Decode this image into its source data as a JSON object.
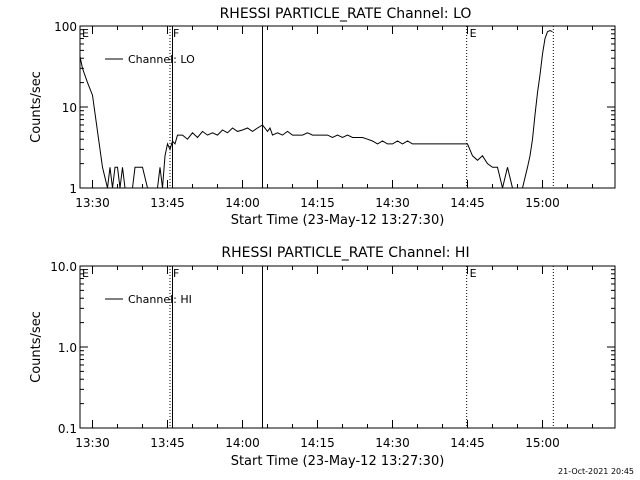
{
  "page": {
    "footer_timestamp": "21-Oct-2021 20:45"
  },
  "colors": {
    "background": "#ffffff",
    "ink": "#000000"
  },
  "chart_data": [
    {
      "type": "line",
      "title": "RHESSI PARTICLE_RATE Channel: LO",
      "xlabel": "Start Time (23-May-12 13:27:30)",
      "ylabel": "Counts/sec",
      "y_scale": "log",
      "ylim": [
        1,
        100
      ],
      "y_tick_values": [
        1,
        10,
        100
      ],
      "y_tick_labels": [
        "1",
        "10",
        "100"
      ],
      "x_tick_labels": [
        "13:30",
        "13:45",
        "14:00",
        "14:15",
        "14:30",
        "14:45",
        "15:00"
      ],
      "xlim": [
        "13:27:30",
        "15:14:30"
      ],
      "grid": false,
      "legend": {
        "placement": "top-left",
        "entries": [
          "Channel: LO"
        ]
      },
      "markers": [
        {
          "time": "13:45:30",
          "style": "dotted",
          "label": "F"
        },
        {
          "time": "13:46:00",
          "style": "solid",
          "label": ""
        },
        {
          "time": "14:04:00",
          "style": "solid",
          "label": ""
        },
        {
          "time": "14:44:50",
          "style": "dotted",
          "label": "E"
        },
        {
          "time": "15:02:10",
          "style": "dotted",
          "label": ""
        }
      ],
      "corner_labels": [
        {
          "time": "13:27:30",
          "label": "E"
        }
      ],
      "series": [
        {
          "name": "Channel: LO",
          "x": [
            "13:27:30",
            "13:28:00",
            "13:29:00",
            "13:30:00",
            "13:31:00",
            "13:32:00",
            "13:33:00",
            "13:33:30",
            "13:34:00",
            "13:34:30",
            "13:35:00",
            "13:35:30",
            "13:36:00",
            "13:36:30",
            "13:37:00",
            "13:38:00",
            "13:38:30",
            "13:39:00",
            "13:40:00",
            "13:41:00",
            "13:42:00",
            "13:43:00",
            "13:43:30",
            "13:44:00",
            "13:44:30",
            "13:45:00",
            "13:45:30",
            "13:46:00",
            "13:46:30",
            "13:47:00",
            "13:48:00",
            "13:49:00",
            "13:50:00",
            "13:51:00",
            "13:52:00",
            "13:53:00",
            "13:54:00",
            "13:55:00",
            "13:56:00",
            "13:57:00",
            "13:58:00",
            "13:59:00",
            "14:00:00",
            "14:01:00",
            "14:02:00",
            "14:03:00",
            "14:04:00",
            "14:05:00",
            "14:05:30",
            "14:06:00",
            "14:07:00",
            "14:08:00",
            "14:09:00",
            "14:10:00",
            "14:11:00",
            "14:12:00",
            "14:13:00",
            "14:14:00",
            "14:15:00",
            "14:16:00",
            "14:17:00",
            "14:18:00",
            "14:19:00",
            "14:20:00",
            "14:21:00",
            "14:22:00",
            "14:23:00",
            "14:24:00",
            "14:25:00",
            "14:26:00",
            "14:27:00",
            "14:28:00",
            "14:29:00",
            "14:30:00",
            "14:31:00",
            "14:32:00",
            "14:33:00",
            "14:34:00",
            "14:35:00",
            "14:36:00",
            "14:37:00",
            "14:38:00",
            "14:39:00",
            "14:40:00",
            "14:41:00",
            "14:42:00",
            "14:43:00",
            "14:44:00",
            "14:45:00",
            "14:46:00",
            "14:47:00",
            "14:48:00",
            "14:49:00",
            "14:50:00",
            "14:51:00",
            "14:52:00",
            "14:53:00",
            "14:54:00",
            "14:55:00",
            "14:56:00",
            "14:57:00",
            "14:57:30",
            "14:58:00",
            "14:58:30",
            "14:59:00",
            "14:59:30",
            "15:00:00",
            "15:00:30",
            "15:01:00",
            "15:01:30",
            "15:02:00"
          ],
          "y": [
            42,
            30,
            20,
            14,
            5,
            1.8,
            1.0,
            1.8,
            1.0,
            1.8,
            1.8,
            1.0,
            1.8,
            1.0,
            1.0,
            1.0,
            1.8,
            1.8,
            1.8,
            1.0,
            1.0,
            1.0,
            1.8,
            1.0,
            2.5,
            3.5,
            3.0,
            3.8,
            3.5,
            4.5,
            4.5,
            4.0,
            4.8,
            4.2,
            5.0,
            4.5,
            4.8,
            4.5,
            5.2,
            4.8,
            5.5,
            5.0,
            5.2,
            5.5,
            5.0,
            5.5,
            6.0,
            5.0,
            5.5,
            4.5,
            4.8,
            4.5,
            5.0,
            4.5,
            4.5,
            4.5,
            4.8,
            4.5,
            4.5,
            4.5,
            4.5,
            4.2,
            4.5,
            4.2,
            4.5,
            4.2,
            4.2,
            4.2,
            4.0,
            3.8,
            3.5,
            3.8,
            3.5,
            3.5,
            3.8,
            3.5,
            3.8,
            3.5,
            3.5,
            3.5,
            3.5,
            3.5,
            3.5,
            3.5,
            3.5,
            3.5,
            3.5,
            3.5,
            3.5,
            2.5,
            2.2,
            2.5,
            2.0,
            1.8,
            1.8,
            1.0,
            1.8,
            1.0,
            1.0,
            1.0,
            1.8,
            2.5,
            4.0,
            8,
            15,
            25,
            45,
            70,
            85,
            88,
            85
          ]
        }
      ]
    },
    {
      "type": "line",
      "title": "RHESSI PARTICLE_RATE Channel: HI",
      "xlabel": "Start Time (23-May-12 13:27:30)",
      "ylabel": "Counts/sec",
      "y_scale": "log",
      "ylim": [
        0.1,
        10
      ],
      "y_tick_values": [
        0.1,
        1,
        10
      ],
      "y_tick_labels": [
        "0.1",
        "1.0",
        "10.0"
      ],
      "x_tick_labels": [
        "13:30",
        "13:45",
        "14:00",
        "14:15",
        "14:30",
        "14:45",
        "15:00"
      ],
      "xlim": [
        "13:27:30",
        "15:14:30"
      ],
      "grid": false,
      "legend": {
        "placement": "top-left",
        "entries": [
          "Channel: HI"
        ]
      },
      "markers": [
        {
          "time": "13:45:30",
          "style": "dotted",
          "label": "F"
        },
        {
          "time": "13:46:00",
          "style": "solid",
          "label": ""
        },
        {
          "time": "14:04:00",
          "style": "solid",
          "label": ""
        },
        {
          "time": "14:44:50",
          "style": "dotted",
          "label": "E"
        },
        {
          "time": "15:02:10",
          "style": "dotted",
          "label": ""
        }
      ],
      "corner_labels": [
        {
          "time": "13:27:30",
          "label": "E"
        }
      ],
      "series": [
        {
          "name": "Channel: HI",
          "x": [],
          "y": []
        }
      ]
    }
  ]
}
